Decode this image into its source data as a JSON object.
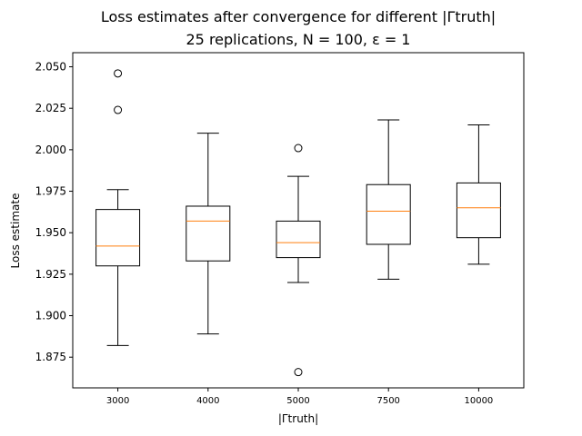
{
  "chart_data": {
    "type": "box",
    "title": "Loss estimates after convergence for different |Γtruth|",
    "subtitle": "25 replications, N = 100, ε = 1",
    "xlabel": "|Γtruth|",
    "ylabel": "Loss estimate",
    "categories": [
      "3000",
      "4000",
      "5000",
      "7500",
      "10000"
    ],
    "ylim": [
      1.8565,
      2.0585
    ],
    "yticks": [
      "1.875",
      "1.900",
      "1.925",
      "1.950",
      "1.975",
      "2.000",
      "2.025",
      "2.050"
    ],
    "ytick_values": [
      1.875,
      1.9,
      1.925,
      1.95,
      1.975,
      2.0,
      2.025,
      2.05
    ],
    "grid": false,
    "boxes": [
      {
        "category": "3000",
        "whisker_low": 1.882,
        "q1": 1.93,
        "median": 1.942,
        "q3": 1.964,
        "whisker_high": 1.976,
        "outliers": [
          2.024,
          2.046
        ]
      },
      {
        "category": "4000",
        "whisker_low": 1.889,
        "q1": 1.933,
        "median": 1.957,
        "q3": 1.966,
        "whisker_high": 2.01,
        "outliers": []
      },
      {
        "category": "5000",
        "whisker_low": 1.92,
        "q1": 1.935,
        "median": 1.944,
        "q3": 1.957,
        "whisker_high": 1.984,
        "outliers": [
          1.866,
          2.001
        ]
      },
      {
        "category": "7500",
        "whisker_low": 1.922,
        "q1": 1.943,
        "median": 1.963,
        "q3": 1.979,
        "whisker_high": 2.018,
        "outliers": []
      },
      {
        "category": "10000",
        "whisker_low": 1.931,
        "q1": 1.947,
        "median": 1.965,
        "q3": 1.98,
        "whisker_high": 2.015,
        "outliers": []
      }
    ],
    "colors": {
      "box": "#000000",
      "median": "#ff7f0e",
      "outlier": "#000000"
    }
  }
}
